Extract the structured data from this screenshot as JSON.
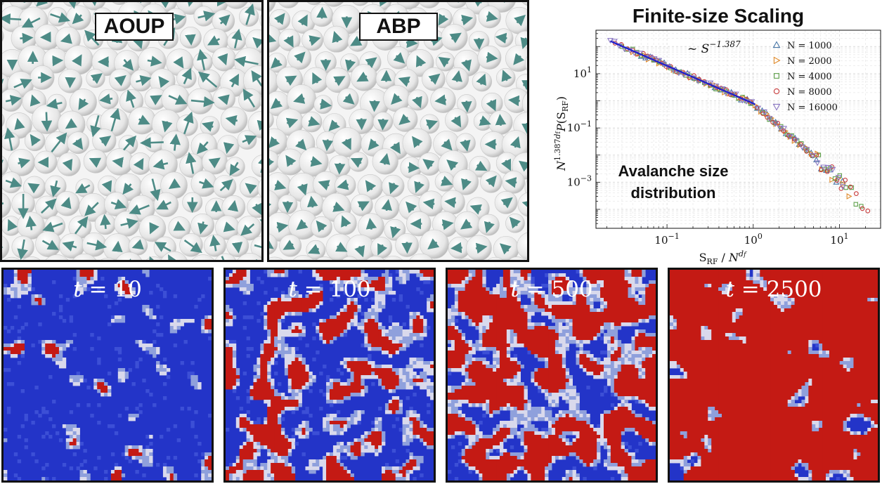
{
  "top_panels": [
    {
      "label": "AOUP"
    },
    {
      "label": "ABP"
    }
  ],
  "scaling": {
    "title": "Finite-size Scaling",
    "annotation_text": "Avalanche size",
    "annotation_text2": "distribution",
    "fit_label": "~ S^-1.387",
    "fit_exponent": -1.387,
    "ylabel": "N^{1.387 d_f} P(S_RF)",
    "xlabel": "S_RF / N^{d_f}",
    "x_ticks": [
      "10^-1",
      "10^0",
      "10^1"
    ],
    "y_ticks": [
      "10^1",
      "10^-1",
      "10^-3"
    ],
    "xlim": [
      0.015,
      30
    ],
    "ylim": [
      2e-05,
      400
    ],
    "x_scale": "log",
    "y_scale": "log",
    "grid": true,
    "legend_position": "top-right",
    "fit_line_color": "#1f1fcc",
    "series": [
      {
        "name": "N = 1000",
        "marker": "triangle-up",
        "color": "#4a78a8"
      },
      {
        "name": "N = 2000",
        "marker": "triangle-right",
        "color": "#e08a2a"
      },
      {
        "name": "N = 4000",
        "marker": "square",
        "color": "#5ea04a"
      },
      {
        "name": "N = 8000",
        "marker": "circle",
        "color": "#c83a3a"
      },
      {
        "name": "N = 16000",
        "marker": "triangle-down",
        "color": "#8c79c4"
      }
    ]
  },
  "time_panels": [
    {
      "t": "10",
      "red_fraction": 0.06
    },
    {
      "t": "100",
      "red_fraction": 0.35
    },
    {
      "t": "500",
      "red_fraction": 0.62
    },
    {
      "t": "2500",
      "red_fraction": 0.95
    }
  ],
  "colors": {
    "blue": "#2334c8",
    "red": "#c41a14",
    "arrow": "#4d8b86",
    "particle": "#e6e6e6"
  }
}
